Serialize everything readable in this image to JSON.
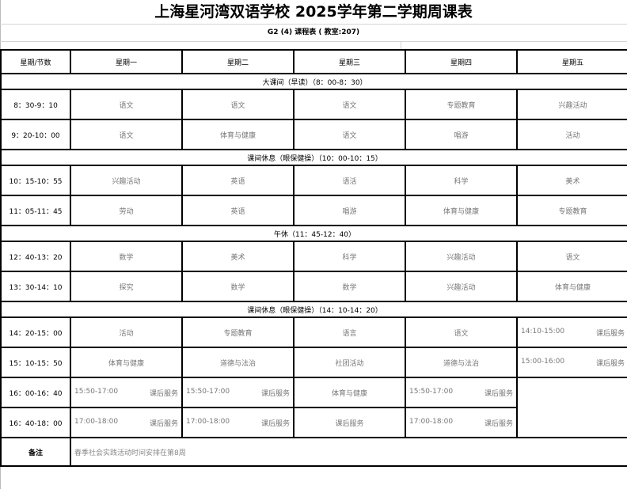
{
  "title": "上海星河湾双语学校 2025学年第二学期周课表",
  "subtitle": "G2 (4) 课程表 ( 教室:207)",
  "header": [
    "星期/节数",
    "星期一",
    "星期二",
    "星期三",
    "星期四",
    "星期五"
  ],
  "rows": [
    {
      "type": "break",
      "text": "大课间（早读）（8：00-8：30）"
    },
    {
      "type": "class",
      "time": "8：30-9：10",
      "cells": [
        "语文",
        "语文",
        "语文",
        "专题教育",
        "兴趣活动"
      ]
    },
    {
      "type": "class",
      "time": "9：20-10：00",
      "cells": [
        "语文",
        "体育与健康",
        "语文",
        "唱游",
        "活动"
      ]
    },
    {
      "type": "break",
      "text": "课间休息（眼保健操）（10：00-10：15）"
    },
    {
      "type": "class",
      "time": "10：15-10：55",
      "cells": [
        "兴趣活动",
        "英语",
        "语活",
        "科学",
        "美术"
      ]
    },
    {
      "type": "class",
      "time": "11：05-11：45",
      "cells": [
        "劳动",
        "英语",
        "唱游",
        "体育与健康",
        "专题教育"
      ]
    },
    {
      "type": "break",
      "text": "午休（11：45-12：40）"
    },
    {
      "type": "class",
      "time": "12：40-13：20",
      "cells": [
        "数学",
        "美术",
        "科学",
        "兴趣活动",
        "语文"
      ]
    },
    {
      "type": "class",
      "time": "13：30-14：10",
      "cells": [
        "探究",
        "数学",
        "数学",
        "兴趣活动",
        "体育与健康"
      ]
    },
    {
      "type": "break",
      "text": "课间休息（眼保健操）（14：10-14：20）"
    },
    {
      "type": "class",
      "time": "14：20-15：00",
      "cells": [
        "活动",
        "专题教育",
        "语言",
        "语文",
        {
          "time": "14:10-15:00",
          "label": "课后服务"
        }
      ]
    },
    {
      "type": "class",
      "time": "15：10-15：50",
      "cells": [
        "体育与健康",
        "道德与法治",
        "社团活动",
        "道德与法治",
        {
          "time": "15:00-16:00",
          "label": "课后服务"
        }
      ]
    },
    {
      "type": "class",
      "time": "16：00-16：40",
      "cells": [
        {
          "time": "15:50-17:00",
          "label": "课后服务"
        },
        {
          "time": "15:50-17:00",
          "label": "课后服务"
        },
        "体育与健康",
        {
          "time": "15:50-17:00",
          "label": "课后服务"
        },
        {
          "empty": true,
          "rowspan": 2
        }
      ]
    },
    {
      "type": "class",
      "time": "16：40-18：00",
      "cells": [
        {
          "time": "17:00-18:00",
          "label": "课后服务"
        },
        {
          "time": "17:00-18:00",
          "label": "课后服务"
        },
        "课后服务",
        {
          "time": "17:00-18:00",
          "label": "课后服务"
        }
      ]
    }
  ],
  "notes": {
    "label": "备注",
    "text": "春季社会实践活动时间安排在第8周"
  }
}
